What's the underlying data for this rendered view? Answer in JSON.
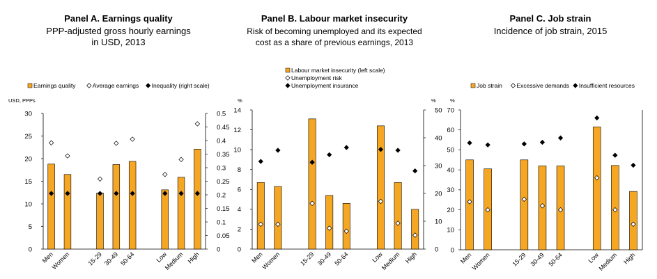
{
  "chart_data": [
    {
      "type": "bar",
      "title": "Panel A. Earnings quality",
      "subtitle": "PPP-adjusted gross hourly earnings in USD,  2013",
      "ylabel": "USD, PPPs",
      "y2label": "",
      "ylim": [
        0,
        30
      ],
      "y2lim": [
        0,
        0.5
      ],
      "yticks": [
        "0",
        "5",
        "10",
        "15",
        "20",
        "25",
        "30"
      ],
      "y2ticks": [
        "0",
        "0.05",
        "0.1",
        "0.15",
        "0.2",
        "0.25",
        "0.3",
        "0.35",
        "0.4",
        "0.45",
        "0.5"
      ],
      "categories": [
        "Men",
        "Women",
        "",
        "15-29",
        "30-49",
        "50-64",
        "",
        "Low",
        "Medium",
        "High"
      ],
      "series": [
        {
          "name": "Earnings quality",
          "kind": "bar",
          "axis": "left",
          "values": [
            18.8,
            16.5,
            null,
            12.4,
            18.7,
            19.4,
            null,
            13.1,
            15.9,
            22.1
          ]
        },
        {
          "name": "Average earnings",
          "kind": "open-diamond",
          "axis": "left",
          "values": [
            23.5,
            20.6,
            null,
            15.5,
            23.4,
            24.3,
            null,
            16.5,
            19.8,
            27.7
          ]
        },
        {
          "name": "Inequality (right scale)",
          "kind": "filled-diamond",
          "axis": "right",
          "values": [
            0.205,
            0.205,
            null,
            0.205,
            0.205,
            0.205,
            null,
            0.205,
            0.205,
            0.205
          ]
        }
      ],
      "legend_rows": [
        [
          "Earnings quality",
          "Average earnings",
          "Inequality (right scale)"
        ]
      ]
    },
    {
      "type": "bar",
      "title": "Panel B. Labour market insecurity",
      "subtitle": "Risk of becoming unemployed and its expected cost as a share of previous earnings, 2013",
      "ylabel": "%",
      "y2label": "%",
      "ylim": [
        0,
        14
      ],
      "y2lim": [
        0,
        50
      ],
      "yticks": [
        "0",
        "2",
        "4",
        "6",
        "8",
        "10",
        "12",
        "14"
      ],
      "y2ticks": [
        "0",
        "10",
        "20",
        "30",
        "40",
        "50"
      ],
      "categories": [
        "Men",
        "Women",
        "",
        "15-29",
        "30-49",
        "50-64",
        "",
        "Low",
        "Medium",
        "High"
      ],
      "series": [
        {
          "name": "Labour market insecurity (left scale)",
          "kind": "bar",
          "axis": "left",
          "values": [
            6.7,
            6.3,
            null,
            13.1,
            5.4,
            4.6,
            null,
            12.4,
            6.7,
            4.0
          ]
        },
        {
          "name": "Unemployment risk",
          "kind": "open-diamond",
          "axis": "left",
          "values": [
            2.5,
            2.5,
            null,
            4.6,
            2.1,
            1.8,
            null,
            4.8,
            2.6,
            1.4
          ]
        },
        {
          "name": "Unemployment insurance",
          "kind": "filled-diamond",
          "axis": "right",
          "values": [
            31.5,
            35.5,
            null,
            31.2,
            33.9,
            36.5,
            null,
            35.8,
            35.5,
            28.1
          ]
        }
      ],
      "legend_rows": [
        [
          "Labour market insecurity (left scale)"
        ],
        [
          "Unemployment risk"
        ],
        [
          "Unemployment insurance"
        ]
      ]
    },
    {
      "type": "bar",
      "title": "Panel C. Job strain",
      "subtitle": "Incidence of job strain, 2015",
      "ylabel": "%",
      "y2label": "",
      "ylim": [
        0,
        70
      ],
      "yticks": [
        "0",
        "10",
        "20",
        "30",
        "40",
        "50",
        "60",
        "70"
      ],
      "categories": [
        "Men",
        "Women",
        "",
        "15-29",
        "30-49",
        "50-64",
        "",
        "Low",
        "Medium",
        "High"
      ],
      "series": [
        {
          "name": "Job strain",
          "kind": "bar",
          "axis": "left",
          "values": [
            45,
            40.5,
            null,
            45,
            42,
            42,
            null,
            61.5,
            42.2,
            29.2
          ]
        },
        {
          "name": "Excessive demands",
          "kind": "open-diamond",
          "axis": "left",
          "values": [
            24,
            20,
            null,
            25.3,
            22,
            20,
            null,
            36,
            20,
            12.8
          ]
        },
        {
          "name": "Insufficient resources",
          "kind": "filled-diamond",
          "axis": "left",
          "values": [
            53.5,
            52.5,
            null,
            53,
            53.8,
            56,
            null,
            66,
            47.3,
            42.3
          ]
        }
      ],
      "legend_rows": [
        [
          "Job strain",
          "Excessive demands",
          "Insufficient resources"
        ]
      ]
    }
  ],
  "colors": {
    "bar_fill": "#F5A623",
    "bar_stroke": "#000000",
    "axis": "#000000",
    "text": "#000000"
  }
}
